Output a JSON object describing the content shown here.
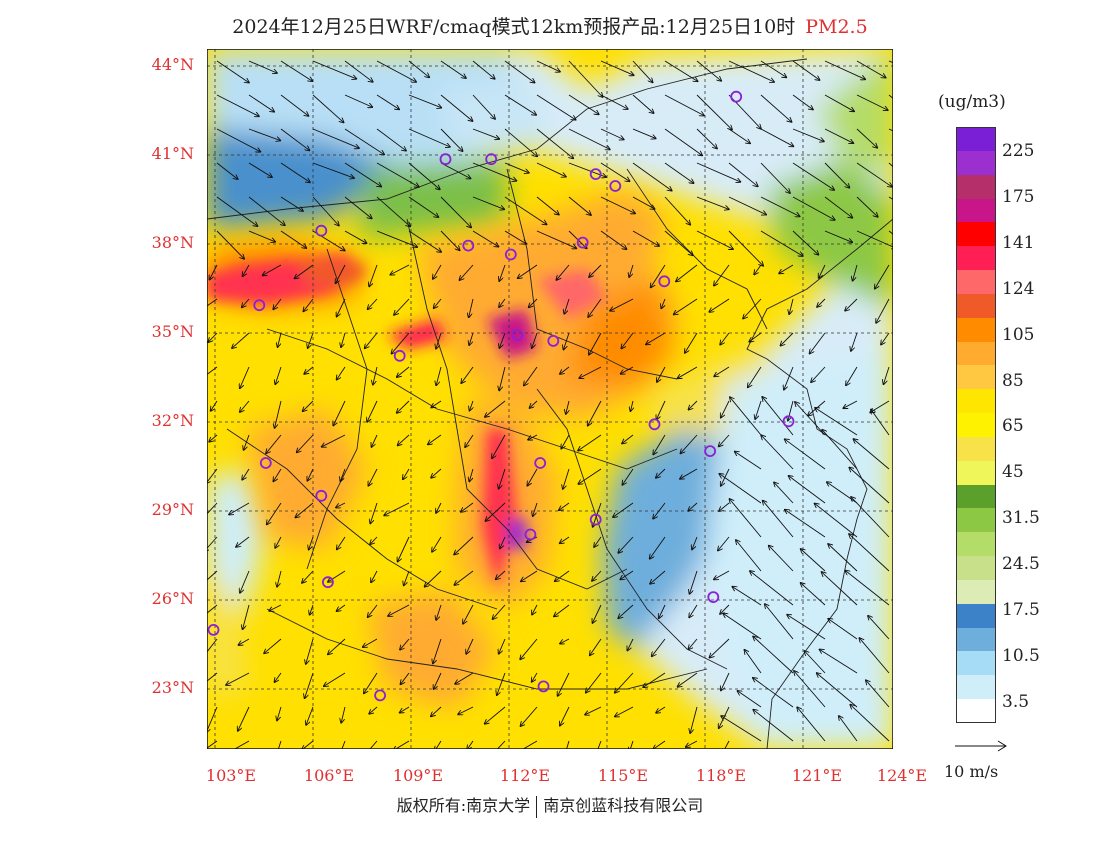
{
  "title": {
    "main": "2024年12月25日WRF/cmaq模式12km预报产品:12月25日10时",
    "species": "PM2.5"
  },
  "lat_labels": [
    "44°N",
    "41°N",
    "38°N",
    "35°N",
    "32°N",
    "29°N",
    "26°N",
    "23°N"
  ],
  "lon_labels": [
    "103°E",
    "106°E",
    "109°E",
    "112°E",
    "115°E",
    "118°E",
    "121°E",
    "124°E"
  ],
  "legend": {
    "unit": "(ug/m3)",
    "labels": [
      "225",
      "175",
      "141",
      "124",
      "105",
      "85",
      "65",
      "45",
      "31.5",
      "24.5",
      "17.5",
      "10.5",
      "3.5"
    ],
    "colors": [
      "#7a1fd6",
      "#9c2fcf",
      "#b5306a",
      "#c8168a",
      "#ff0000",
      "#ff1f55",
      "#ff6868",
      "#f05a28",
      "#ff8c00",
      "#ffab30",
      "#ffc840",
      "#ffe600",
      "#fff200",
      "#f7e24a",
      "#eef65a",
      "#5aa02a",
      "#8cc844",
      "#b4dc68",
      "#c8e08a",
      "#dcecb4",
      "#3c82c8",
      "#6eaedc",
      "#a6dcf5",
      "#cfeefa",
      "#ffffff"
    ],
    "ref_vector_label": "10 m/s"
  },
  "credit": {
    "left": "版权所有:南京大学",
    "right": "南京创蓝科技有限公司"
  },
  "map": {
    "lon_range": [
      103,
      124
    ],
    "lat_range": [
      21,
      44.5
    ],
    "cities": [
      {
        "lon": 103.2,
        "lat": 25.0
      },
      {
        "lon": 104.6,
        "lat": 35.9
      },
      {
        "lon": 104.8,
        "lat": 30.6
      },
      {
        "lon": 106.5,
        "lat": 38.4
      },
      {
        "lon": 106.5,
        "lat": 29.5
      },
      {
        "lon": 106.7,
        "lat": 26.6
      },
      {
        "lon": 108.3,
        "lat": 22.8
      },
      {
        "lon": 108.9,
        "lat": 34.2
      },
      {
        "lon": 110.3,
        "lat": 40.8
      },
      {
        "lon": 111.0,
        "lat": 37.9
      },
      {
        "lon": 111.7,
        "lat": 40.8
      },
      {
        "lon": 112.3,
        "lat": 37.6
      },
      {
        "lon": 112.5,
        "lat": 34.9
      },
      {
        "lon": 112.9,
        "lat": 28.2
      },
      {
        "lon": 113.2,
        "lat": 30.6
      },
      {
        "lon": 113.3,
        "lat": 23.1
      },
      {
        "lon": 113.6,
        "lat": 34.7
      },
      {
        "lon": 114.5,
        "lat": 38.0
      },
      {
        "lon": 114.9,
        "lat": 40.3
      },
      {
        "lon": 114.9,
        "lat": 28.7
      },
      {
        "lon": 115.5,
        "lat": 39.9
      },
      {
        "lon": 116.7,
        "lat": 31.9
      },
      {
        "lon": 117.0,
        "lat": 36.7
      },
      {
        "lon": 118.4,
        "lat": 31.0
      },
      {
        "lon": 118.5,
        "lat": 26.1
      },
      {
        "lon": 119.2,
        "lat": 42.9
      },
      {
        "lon": 120.8,
        "lat": 32.0
      }
    ]
  }
}
